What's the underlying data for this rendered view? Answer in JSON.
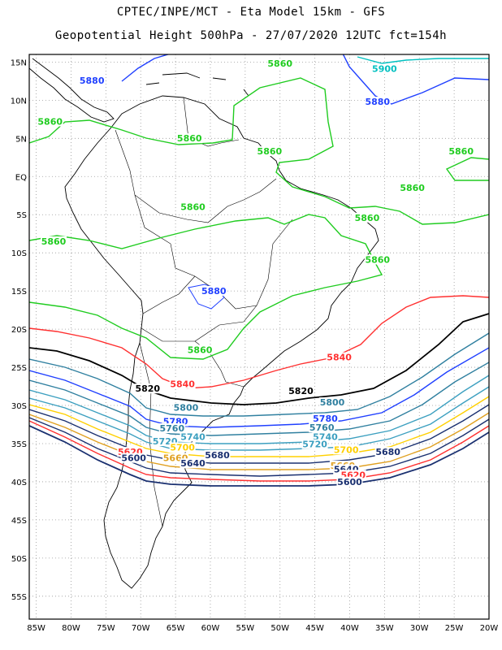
{
  "header": {
    "line1": "CPTEC/INPE/MCT -  Eta Model 15km - GFS",
    "line2": "Geopotential Height 500hPa - 27/07/2020 12UTC fct=154h"
  },
  "axes": {
    "lat_labels": [
      "15N",
      "10N",
      "5N",
      "EQ",
      "5S",
      "10S",
      "15S",
      "20S",
      "25S",
      "30S",
      "35S",
      "40S",
      "45S",
      "50S",
      "55S"
    ],
    "lat_values": [
      15,
      10,
      5,
      0,
      -5,
      -10,
      -15,
      -20,
      -25,
      -30,
      -35,
      -40,
      -45,
      -50,
      -55
    ],
    "lon_labels": [
      "85W",
      "80W",
      "75W",
      "70W",
      "65W",
      "60W",
      "55W",
      "50W",
      "45W",
      "40W",
      "35W",
      "30W",
      "25W",
      "20W"
    ],
    "lon_values": [
      -85,
      -80,
      -75,
      -70,
      -65,
      -60,
      -55,
      -50,
      -45,
      -40,
      -35,
      -30,
      -25,
      -20
    ],
    "lon_range": [
      -86,
      -20
    ],
    "lat_range": [
      -58,
      16
    ],
    "grid": "dotted"
  },
  "contour_labels": [
    {
      "text": "5880",
      "color": "#2040ff",
      "lon": -77,
      "lat": 12.3
    },
    {
      "text": "5880",
      "color": "#2040ff",
      "lon": -36,
      "lat": 9.5
    },
    {
      "text": "5900",
      "color": "#00c0c0",
      "lon": -35,
      "lat": 13.8
    },
    {
      "text": "5860",
      "color": "#20cc20",
      "lon": -83,
      "lat": 6.9
    },
    {
      "text": "5860",
      "color": "#20cc20",
      "lon": -63,
      "lat": 4.7
    },
    {
      "text": "5860",
      "color": "#20cc20",
      "lon": -50,
      "lat": 14.5
    },
    {
      "text": "5860",
      "color": "#20cc20",
      "lon": -51.5,
      "lat": 3.0
    },
    {
      "text": "5860",
      "color": "#20cc20",
      "lon": -24,
      "lat": 3.0
    },
    {
      "text": "5860",
      "color": "#20cc20",
      "lon": -31,
      "lat": -1.8
    },
    {
      "text": "5860",
      "color": "#20cc20",
      "lon": -62.5,
      "lat": -4.3
    },
    {
      "text": "5860",
      "color": "#20cc20",
      "lon": -37.5,
      "lat": -5.7
    },
    {
      "text": "5860",
      "color": "#20cc20",
      "lon": -82.5,
      "lat": -8.8
    },
    {
      "text": "5860",
      "color": "#20cc20",
      "lon": -36,
      "lat": -11.2
    },
    {
      "text": "5860",
      "color": "#20cc20",
      "lon": -61.5,
      "lat": -23.0
    },
    {
      "text": "5880",
      "color": "#2040ff",
      "lon": -59.5,
      "lat": -15.3
    },
    {
      "text": "5840",
      "color": "#ff3030",
      "lon": -64,
      "lat": -27.5
    },
    {
      "text": "5840",
      "color": "#ff3030",
      "lon": -41.5,
      "lat": -24.0
    },
    {
      "text": "5820",
      "color": "#000000",
      "lon": -69,
      "lat": -28.1
    },
    {
      "text": "5820",
      "color": "#000000",
      "lon": -47,
      "lat": -28.4
    },
    {
      "text": "5800",
      "color": "#3080a0",
      "lon": -63.5,
      "lat": -30.6
    },
    {
      "text": "5800",
      "color": "#3080a0",
      "lon": -42.5,
      "lat": -29.9
    },
    {
      "text": "5780",
      "color": "#2040ff",
      "lon": -65,
      "lat": -32.4
    },
    {
      "text": "5780",
      "color": "#2040ff",
      "lon": -43.5,
      "lat": -32.0
    },
    {
      "text": "5760",
      "color": "#3080a0",
      "lon": -65.5,
      "lat": -33.3
    },
    {
      "text": "5760",
      "color": "#3080a0",
      "lon": -44,
      "lat": -33.2
    },
    {
      "text": "5740",
      "color": "#3da0c0",
      "lon": -62.5,
      "lat": -34.4
    },
    {
      "text": "5740",
      "color": "#3da0c0",
      "lon": -43.5,
      "lat": -34.4
    },
    {
      "text": "5720",
      "color": "#3da0c0",
      "lon": -66.5,
      "lat": -35.0
    },
    {
      "text": "5720",
      "color": "#3da0c0",
      "lon": -45,
      "lat": -35.4
    },
    {
      "text": "5700",
      "color": "#ffd000",
      "lon": -64,
      "lat": -35.8
    },
    {
      "text": "5700",
      "color": "#ffd000",
      "lon": -40.5,
      "lat": -36.1
    },
    {
      "text": "5680",
      "color": "#1a3070",
      "lon": -59,
      "lat": -36.8
    },
    {
      "text": "5680",
      "color": "#1a3070",
      "lon": -34.5,
      "lat": -36.4
    },
    {
      "text": "5660",
      "color": "#e0a020",
      "lon": -65,
      "lat": -37.2
    },
    {
      "text": "5660",
      "color": "#e0a020",
      "lon": -41,
      "lat": -38.2
    },
    {
      "text": "5640",
      "color": "#1a3070",
      "lon": -62.5,
      "lat": -37.9
    },
    {
      "text": "5640",
      "color": "#1a3070",
      "lon": -40.5,
      "lat": -38.7
    },
    {
      "text": "5620",
      "color": "#ff3030",
      "lon": -71.5,
      "lat": -36.4
    },
    {
      "text": "5620",
      "color": "#ff3030",
      "lon": -39.5,
      "lat": -39.4
    },
    {
      "text": "5600",
      "color": "#1a3070",
      "lon": -71,
      "lat": -37.2
    },
    {
      "text": "5600",
      "color": "#1a3070",
      "lon": -40,
      "lat": -40.3
    }
  ]
}
